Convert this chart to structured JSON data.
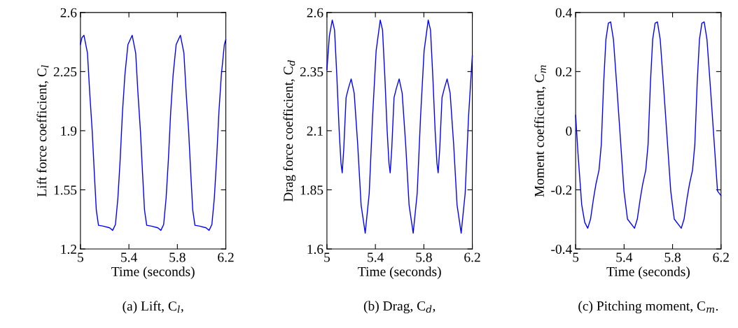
{
  "chart_data": [
    {
      "type": "line",
      "xlabel": "Time (seconds)",
      "ylabel": "Lift force coefficient, C$_{l}$",
      "annotations": [
        "(a) Lift, C$_{l}$,"
      ],
      "xlim": [
        5,
        6.2
      ],
      "xticks": [
        5,
        5.4,
        5.8,
        6.2
      ],
      "ylim": [
        1.2,
        2.6
      ],
      "yticks": [
        1.2,
        1.55,
        1.9,
        2.25,
        2.6
      ],
      "grid": false,
      "legend": false,
      "line_style": "solid",
      "series": [
        {
          "color": "#0000ff",
          "x": [
            5.0,
            5.012,
            5.029,
            5.058,
            5.077,
            5.097,
            5.116,
            5.131,
            5.149,
            5.189,
            5.241,
            5.266,
            5.289,
            5.309,
            5.328,
            5.347,
            5.367,
            5.392,
            5.427,
            5.456,
            5.475,
            5.495,
            5.514,
            5.529,
            5.547,
            5.587,
            5.639,
            5.664,
            5.687,
            5.707,
            5.726,
            5.745,
            5.765,
            5.79,
            5.825,
            5.854,
            5.873,
            5.893,
            5.912,
            5.927,
            5.945,
            5.985,
            6.037,
            6.062,
            6.085,
            6.105,
            6.124,
            6.143,
            6.163,
            6.188,
            6.2
          ],
          "values": [
            2.41,
            2.45,
            2.465,
            2.36,
            2.12,
            1.9,
            1.63,
            1.43,
            1.34,
            1.335,
            1.325,
            1.31,
            1.345,
            1.5,
            1.73,
            2.01,
            2.23,
            2.41,
            2.465,
            2.36,
            2.12,
            1.9,
            1.63,
            1.43,
            1.34,
            1.335,
            1.325,
            1.31,
            1.345,
            1.5,
            1.73,
            2.01,
            2.23,
            2.41,
            2.465,
            2.36,
            2.12,
            1.9,
            1.63,
            1.43,
            1.34,
            1.335,
            1.325,
            1.31,
            1.345,
            1.5,
            1.73,
            2.01,
            2.23,
            2.41,
            2.44
          ]
        }
      ]
    },
    {
      "type": "line",
      "xlabel": "Time (seconds)",
      "ylabel": "Drag force coefficient, C$_{d}$",
      "annotations": [
        "(b) Drag, C$_{d}$,"
      ],
      "xlim": [
        5,
        6.2
      ],
      "xticks": [
        5,
        5.4,
        5.8,
        6.2
      ],
      "ylim": [
        1.6,
        2.6
      ],
      "yticks": [
        1.6,
        1.85,
        2.1,
        2.35,
        2.6
      ],
      "grid": false,
      "legend": false,
      "line_style": "solid",
      "series": [
        {
          "color": "#0000ff",
          "x": [
            5.0,
            5.02,
            5.044,
            5.063,
            5.082,
            5.101,
            5.116,
            5.126,
            5.139,
            5.158,
            5.177,
            5.2,
            5.225,
            5.254,
            5.282,
            5.316,
            5.349,
            5.377,
            5.406,
            5.44,
            5.459,
            5.478,
            5.497,
            5.512,
            5.522,
            5.535,
            5.554,
            5.573,
            5.596,
            5.621,
            5.65,
            5.678,
            5.712,
            5.745,
            5.773,
            5.802,
            5.836,
            5.855,
            5.874,
            5.893,
            5.908,
            5.918,
            5.931,
            5.95,
            5.969,
            5.992,
            6.017,
            6.046,
            6.074,
            6.108,
            6.141,
            6.169,
            6.2
          ],
          "values": [
            2.358,
            2.5,
            2.568,
            2.526,
            2.329,
            2.101,
            1.963,
            1.922,
            2.023,
            2.24,
            2.279,
            2.319,
            2.259,
            2.042,
            1.786,
            1.667,
            1.835,
            2.161,
            2.437,
            2.568,
            2.526,
            2.329,
            2.101,
            1.963,
            1.922,
            2.023,
            2.24,
            2.279,
            2.319,
            2.259,
            2.042,
            1.786,
            1.667,
            1.835,
            2.161,
            2.437,
            2.568,
            2.526,
            2.329,
            2.101,
            1.963,
            1.922,
            2.023,
            2.24,
            2.279,
            2.319,
            2.259,
            2.042,
            1.786,
            1.667,
            1.835,
            2.161,
            2.417
          ]
        }
      ]
    },
    {
      "type": "line",
      "xlabel": "Time (seconds)",
      "ylabel": "Moment coefficient, C$_{m}$",
      "annotations": [
        "(c) Pitching moment, C$_{m}$."
      ],
      "xlim": [
        5,
        6.2
      ],
      "xticks": [
        5,
        5.4,
        5.8,
        6.2
      ],
      "ylim": [
        -0.4,
        0.4
      ],
      "yticks": [
        {
          "value": -0.4,
          "label": "-0.4"
        },
        {
          "value": -0.2,
          "label": "-0.2"
        },
        0,
        0.2,
        0.4
      ],
      "grid": false,
      "legend": false,
      "line_style": "solid",
      "series": [
        {
          "color": "#0000ff",
          "x": [
            5.0,
            5.02,
            5.05,
            5.075,
            5.1,
            5.123,
            5.148,
            5.168,
            5.193,
            5.212,
            5.231,
            5.25,
            5.27,
            5.289,
            5.312,
            5.341,
            5.37,
            5.399,
            5.428,
            5.486,
            5.509,
            5.534,
            5.554,
            5.579,
            5.598,
            5.617,
            5.636,
            5.656,
            5.675,
            5.698,
            5.727,
            5.756,
            5.785,
            5.814,
            5.872,
            5.895,
            5.92,
            5.94,
            5.965,
            5.984,
            6.003,
            6.022,
            6.042,
            6.061,
            6.084,
            6.113,
            6.142,
            6.171,
            6.2
          ],
          "values": [
            0.052,
            -0.08,
            -0.25,
            -0.31,
            -0.33,
            -0.299,
            -0.228,
            -0.18,
            -0.133,
            -0.046,
            0.159,
            0.309,
            0.364,
            0.368,
            0.309,
            0.143,
            -0.03,
            -0.204,
            -0.299,
            -0.33,
            -0.299,
            -0.228,
            -0.18,
            -0.133,
            -0.046,
            0.159,
            0.309,
            0.364,
            0.368,
            0.309,
            0.143,
            -0.03,
            -0.204,
            -0.299,
            -0.33,
            -0.299,
            -0.228,
            -0.18,
            -0.133,
            -0.046,
            0.159,
            0.309,
            0.364,
            0.368,
            0.309,
            0.143,
            -0.03,
            -0.204,
            -0.22
          ]
        }
      ]
    }
  ]
}
